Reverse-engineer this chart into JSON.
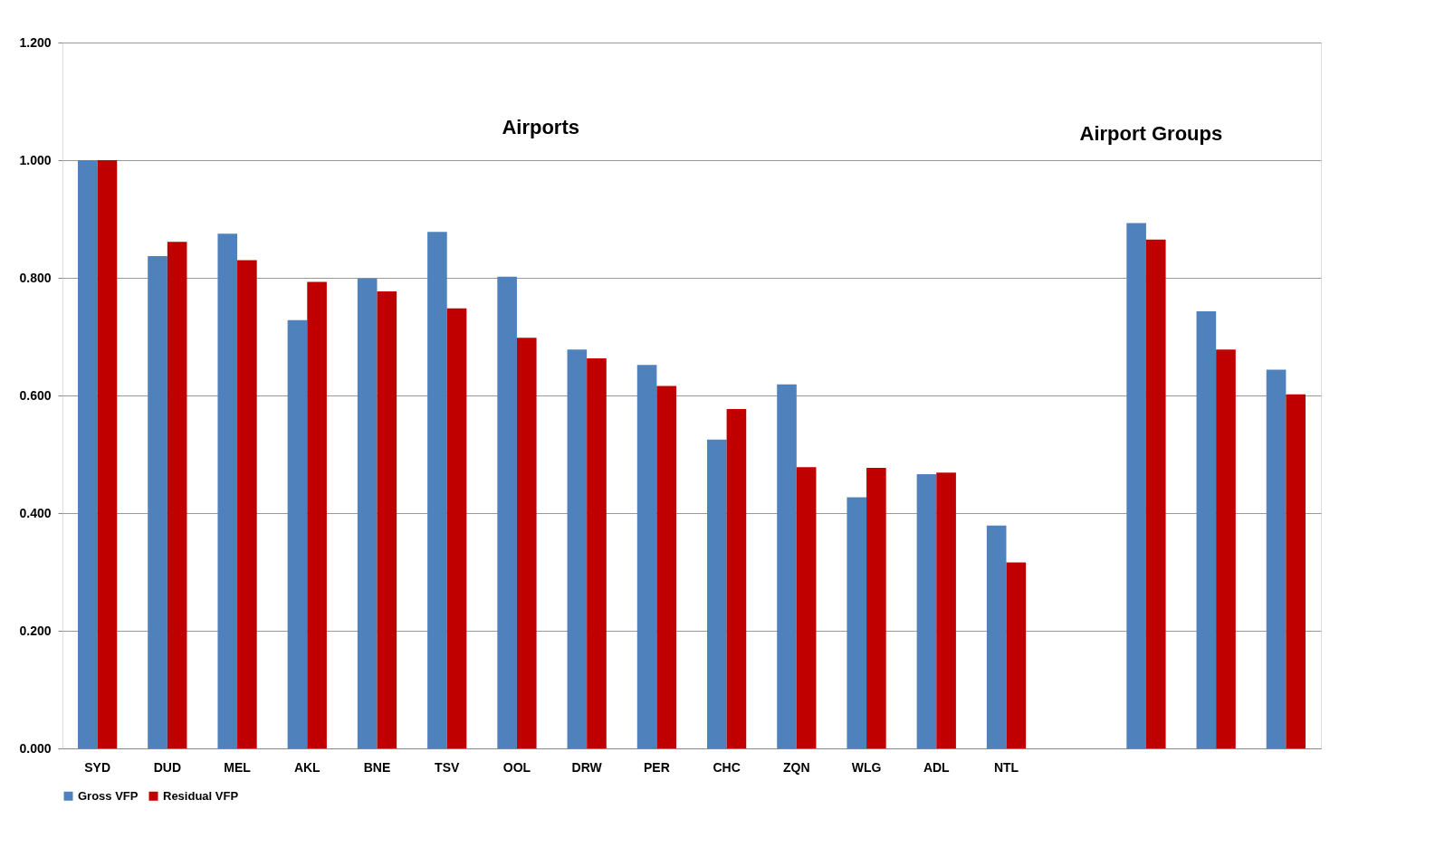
{
  "chart_data": {
    "type": "bar",
    "categories": [
      "SYD",
      "DUD",
      "MEL",
      "AKL",
      "BNE",
      "TSV",
      "OOL",
      "DRW",
      "PER",
      "CHC",
      "ZQN",
      "WLG",
      "ADL",
      "NTL",
      null,
      null,
      null,
      null
    ],
    "series": [
      {
        "name": "Gross VFP",
        "color": "#4f81bd",
        "values": [
          1.0,
          0.837,
          0.875,
          0.728,
          0.799,
          0.878,
          0.802,
          0.678,
          0.652,
          0.525,
          0.619,
          0.427,
          0.466,
          0.379,
          null,
          0.893,
          0.743,
          0.644
        ]
      },
      {
        "name": "Residual VFP",
        "color": "#c00000",
        "values": [
          1.0,
          0.861,
          0.83,
          0.793,
          0.777,
          0.748,
          0.698,
          0.663,
          0.616,
          0.577,
          0.478,
          0.477,
          0.469,
          0.316,
          null,
          0.865,
          0.678,
          0.602
        ]
      }
    ],
    "ylim": [
      0,
      1.2
    ],
    "yticks": [
      {
        "value": 0,
        "label": "0.000"
      },
      {
        "value": 0.2,
        "label": "0.200"
      },
      {
        "value": 0.4,
        "label": "0.400"
      },
      {
        "value": 0.6,
        "label": "0.600"
      },
      {
        "value": 0.8,
        "label": "0.800"
      },
      {
        "value": 1.0,
        "label": "1.000"
      },
      {
        "value": 1.2,
        "label": "1.200"
      }
    ],
    "annotations": [
      "Airports",
      "Airport Groups"
    ],
    "grid": "y",
    "legend": "bottom"
  }
}
